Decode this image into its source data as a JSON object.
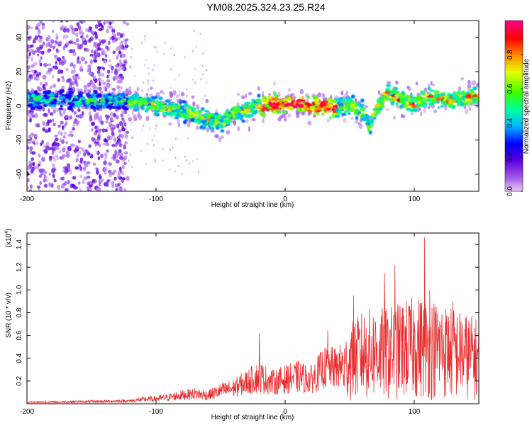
{
  "page": {
    "title": "YM08.2025.324.23.25.R24"
  },
  "chart_data": [
    {
      "type": "heatmap",
      "name": "spectrogram",
      "xlabel": "Height of straight line (km)",
      "ylabel": "Frequency (Hz)",
      "xlim": [
        -200,
        150
      ],
      "ylim": [
        -50,
        50
      ],
      "xticks": [
        -200,
        -100,
        0,
        100
      ],
      "yticks": [
        -40,
        -20,
        0,
        20,
        40
      ],
      "colorbar": {
        "label": "Normalized spectral amplitude",
        "range": [
          0,
          1
        ],
        "ticks": [
          "0.0",
          "0.2",
          "0.4",
          "0.6",
          "0.8"
        ],
        "tick_values": [
          0,
          0.2,
          0.4,
          0.6,
          0.8
        ]
      },
      "ridge": {
        "x": [
          -200,
          -180,
          -160,
          -140,
          -120,
          -100,
          -80,
          -70,
          -60,
          -50,
          -40,
          -30,
          -20,
          -10,
          0,
          10,
          20,
          30,
          40,
          50,
          60,
          65,
          70,
          80,
          90,
          100,
          110,
          120,
          130,
          140,
          150
        ],
        "freq": [
          4,
          4,
          3,
          3,
          3,
          0,
          -3,
          -5,
          -8,
          -10,
          -4,
          -2,
          0,
          1,
          1,
          1,
          0,
          0,
          -1,
          1,
          -4,
          -12,
          -2,
          8,
          3,
          1,
          6,
          4,
          4,
          5,
          5
        ]
      }
    },
    {
      "type": "line",
      "name": "snr",
      "xlabel": "Height of straight line (km)",
      "ylabel": "SNR (10 * v/v)",
      "scale_label": "(x10",
      "scale_exp": "4",
      "scale_close": ")",
      "xlim": [
        -200,
        150
      ],
      "ylim": [
        0,
        1.5
      ],
      "xticks": [
        -200,
        -100,
        0,
        100
      ],
      "yticks": [
        0.2,
        0.4,
        0.6,
        0.8,
        1.0,
        1.2,
        1.4
      ],
      "ytick_labels": [
        "0.2",
        "0.4",
        "0.6",
        "0.8",
        "1.0",
        "1.2",
        "1.4"
      ],
      "series": [
        {
          "name": "SNR",
          "color": "#e83030",
          "envelope_x": [
            -200,
            -150,
            -120,
            -110,
            -100,
            -90,
            -80,
            -70,
            -60,
            -50,
            -40,
            -30,
            -20,
            -10,
            0,
            10,
            20,
            30,
            40,
            45,
            50,
            60,
            70,
            80,
            90,
            100,
            110,
            120,
            130,
            140,
            150
          ],
          "envelope_y": [
            0.02,
            0.03,
            0.04,
            0.06,
            0.07,
            0.09,
            0.12,
            0.14,
            0.12,
            0.18,
            0.22,
            0.3,
            0.38,
            0.3,
            0.34,
            0.38,
            0.34,
            0.5,
            0.5,
            0.55,
            0.7,
            0.82,
            0.85,
            0.85,
            0.9,
            0.95,
            0.95,
            0.9,
            0.85,
            0.8,
            0.75
          ],
          "peaks": [
            {
              "x": -20,
              "y": 0.62
            },
            {
              "x": 33,
              "y": 0.65
            },
            {
              "x": 53,
              "y": 0.95
            },
            {
              "x": 77,
              "y": 1.15
            },
            {
              "x": 85,
              "y": 1.22
            },
            {
              "x": 108,
              "y": 1.46
            },
            {
              "x": 112,
              "y": 1.0
            },
            {
              "x": 130,
              "y": 0.9
            }
          ]
        }
      ]
    }
  ]
}
